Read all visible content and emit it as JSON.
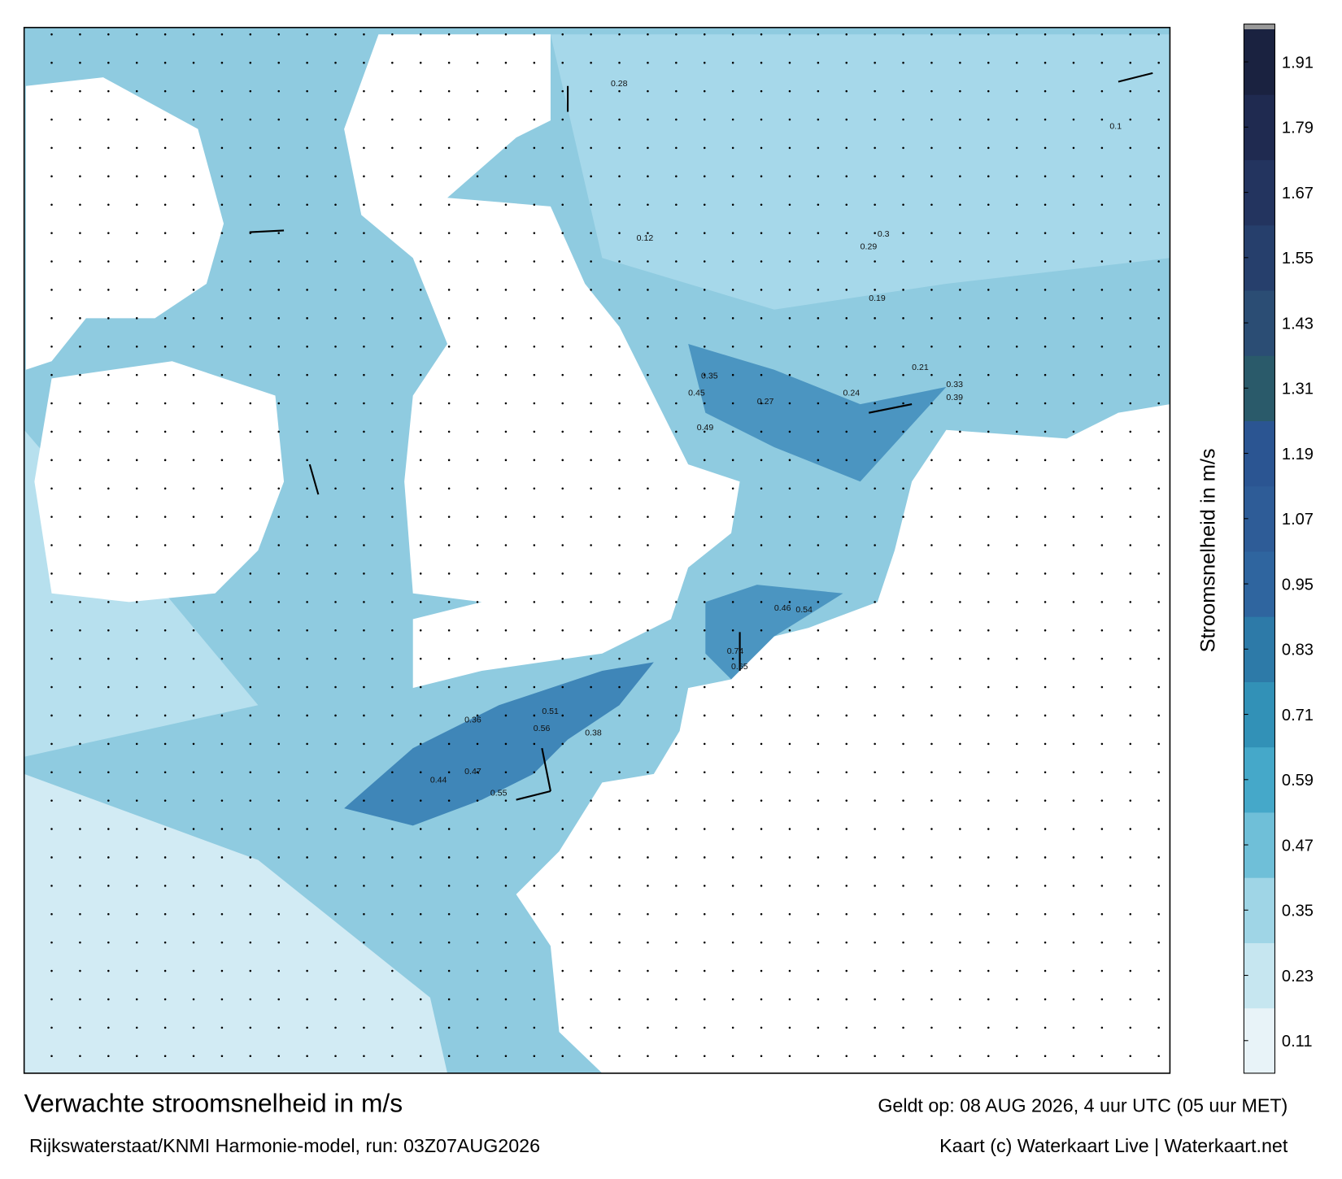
{
  "title": "Verwachte stroomsnelheid in m/s",
  "subtitle": "Rijkswaterstaat/KNMI Harmonie-model, run: 03Z07AUG2026",
  "valid": "Geldt op: 08 AUG 2026, 4 uur UTC (05 uur MET)",
  "credit": "Kaart (c) Waterkaart Live | Waterkaart.net",
  "colorbar": {
    "label": "Stroomsnelheid in m/s",
    "lim": [
      0.05,
      1.97
    ],
    "ticks": [
      0.11,
      0.23,
      0.35,
      0.47,
      0.59,
      0.71,
      0.83,
      0.95,
      1.07,
      1.19,
      1.31,
      1.43,
      1.55,
      1.67,
      1.79,
      1.91
    ],
    "colors": [
      "#e8f3f8",
      "#c6e6f0",
      "#9fd5e6",
      "#6fbfd8",
      "#45a8c9",
      "#3291b7",
      "#2d7aa8",
      "#2f659f",
      "#2e5c97",
      "#2b5592",
      "#2a5a6a",
      "#2b4d74",
      "#263f6c",
      "#23345f",
      "#1f2a50",
      "#1a2240"
    ]
  },
  "map_labels": [
    "0.3",
    "0.29",
    "0.28",
    "0.44",
    "0.47",
    "0.55",
    "0.51",
    "0.56",
    "0.38",
    "0.36",
    "0.35",
    "0.45",
    "0.49",
    "0.39",
    "0.46",
    "0.54",
    "0.65",
    "0.74",
    "0.21",
    "0.19",
    "0.27",
    "0.33",
    "0.24",
    "0.12",
    "0.1"
  ]
}
